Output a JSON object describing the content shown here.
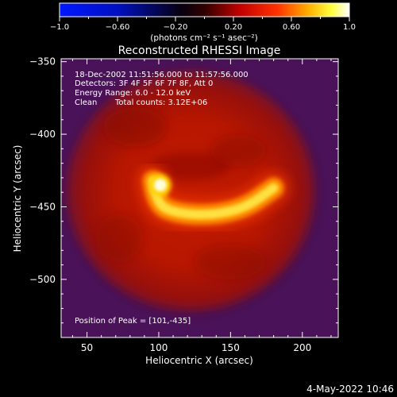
{
  "colorbar": {
    "ticks": [
      -1.0,
      -0.6,
      -0.2,
      0.2,
      0.6,
      1.0
    ],
    "tick_labels": [
      "−1.0",
      "−0.60",
      "−0.20",
      "0.20",
      "0.60",
      "1.0"
    ],
    "unit_label": "(photons cm⁻² s⁻¹ asec⁻²)",
    "range": [
      -1.0,
      1.0
    ],
    "colormap": "rhessi-hot (blue-black-red-yellow-white)"
  },
  "chart_data": {
    "type": "heatmap",
    "title": "Reconstructed RHESSI Image",
    "xlabel": "Heliocentric X (arcsec)",
    "ylabel": "Heliocentric Y (arcsec)",
    "xlim": [
      32,
      225
    ],
    "ylim": [
      -540,
      -348
    ],
    "x_ticks": [
      50,
      100,
      150,
      200
    ],
    "y_ticks": [
      -350,
      -400,
      -450,
      -500
    ],
    "x_tick_labels": [
      "50",
      "100",
      "150",
      "200"
    ],
    "y_tick_labels": [
      "−350",
      "−400",
      "−450",
      "−500"
    ],
    "annotations": {
      "time_range": "18-Dec-2002 11:51:56.000 to 11:57:56.000",
      "detectors": "Detectors: 3F 4F 5F 6F 7F 8F, Att 0",
      "energy": "Energy Range: 6.0 - 12.0 keV",
      "clean": "Clean",
      "total_counts": "Total counts: 3.12E+06",
      "peak": "Position of Peak = [101,-435]"
    },
    "peak_position": [
      101,
      -435
    ],
    "source_features": [
      {
        "name": "bright arc",
        "path": [
          [
            96,
            -432
          ],
          [
            98,
            -447
          ],
          [
            110,
            -454
          ],
          [
            135,
            -456
          ],
          [
            160,
            -451
          ],
          [
            180,
            -437
          ]
        ],
        "intensity": 0.85
      },
      {
        "name": "peak knot",
        "center": [
          101,
          -435
        ],
        "intensity": 1.0
      },
      {
        "name": "diffuse disk",
        "center": [
          130,
          -438
        ],
        "radius": 80,
        "intensity": 0.3
      }
    ]
  },
  "footer": {
    "date_stamp": "4-May-2022 10:46"
  }
}
